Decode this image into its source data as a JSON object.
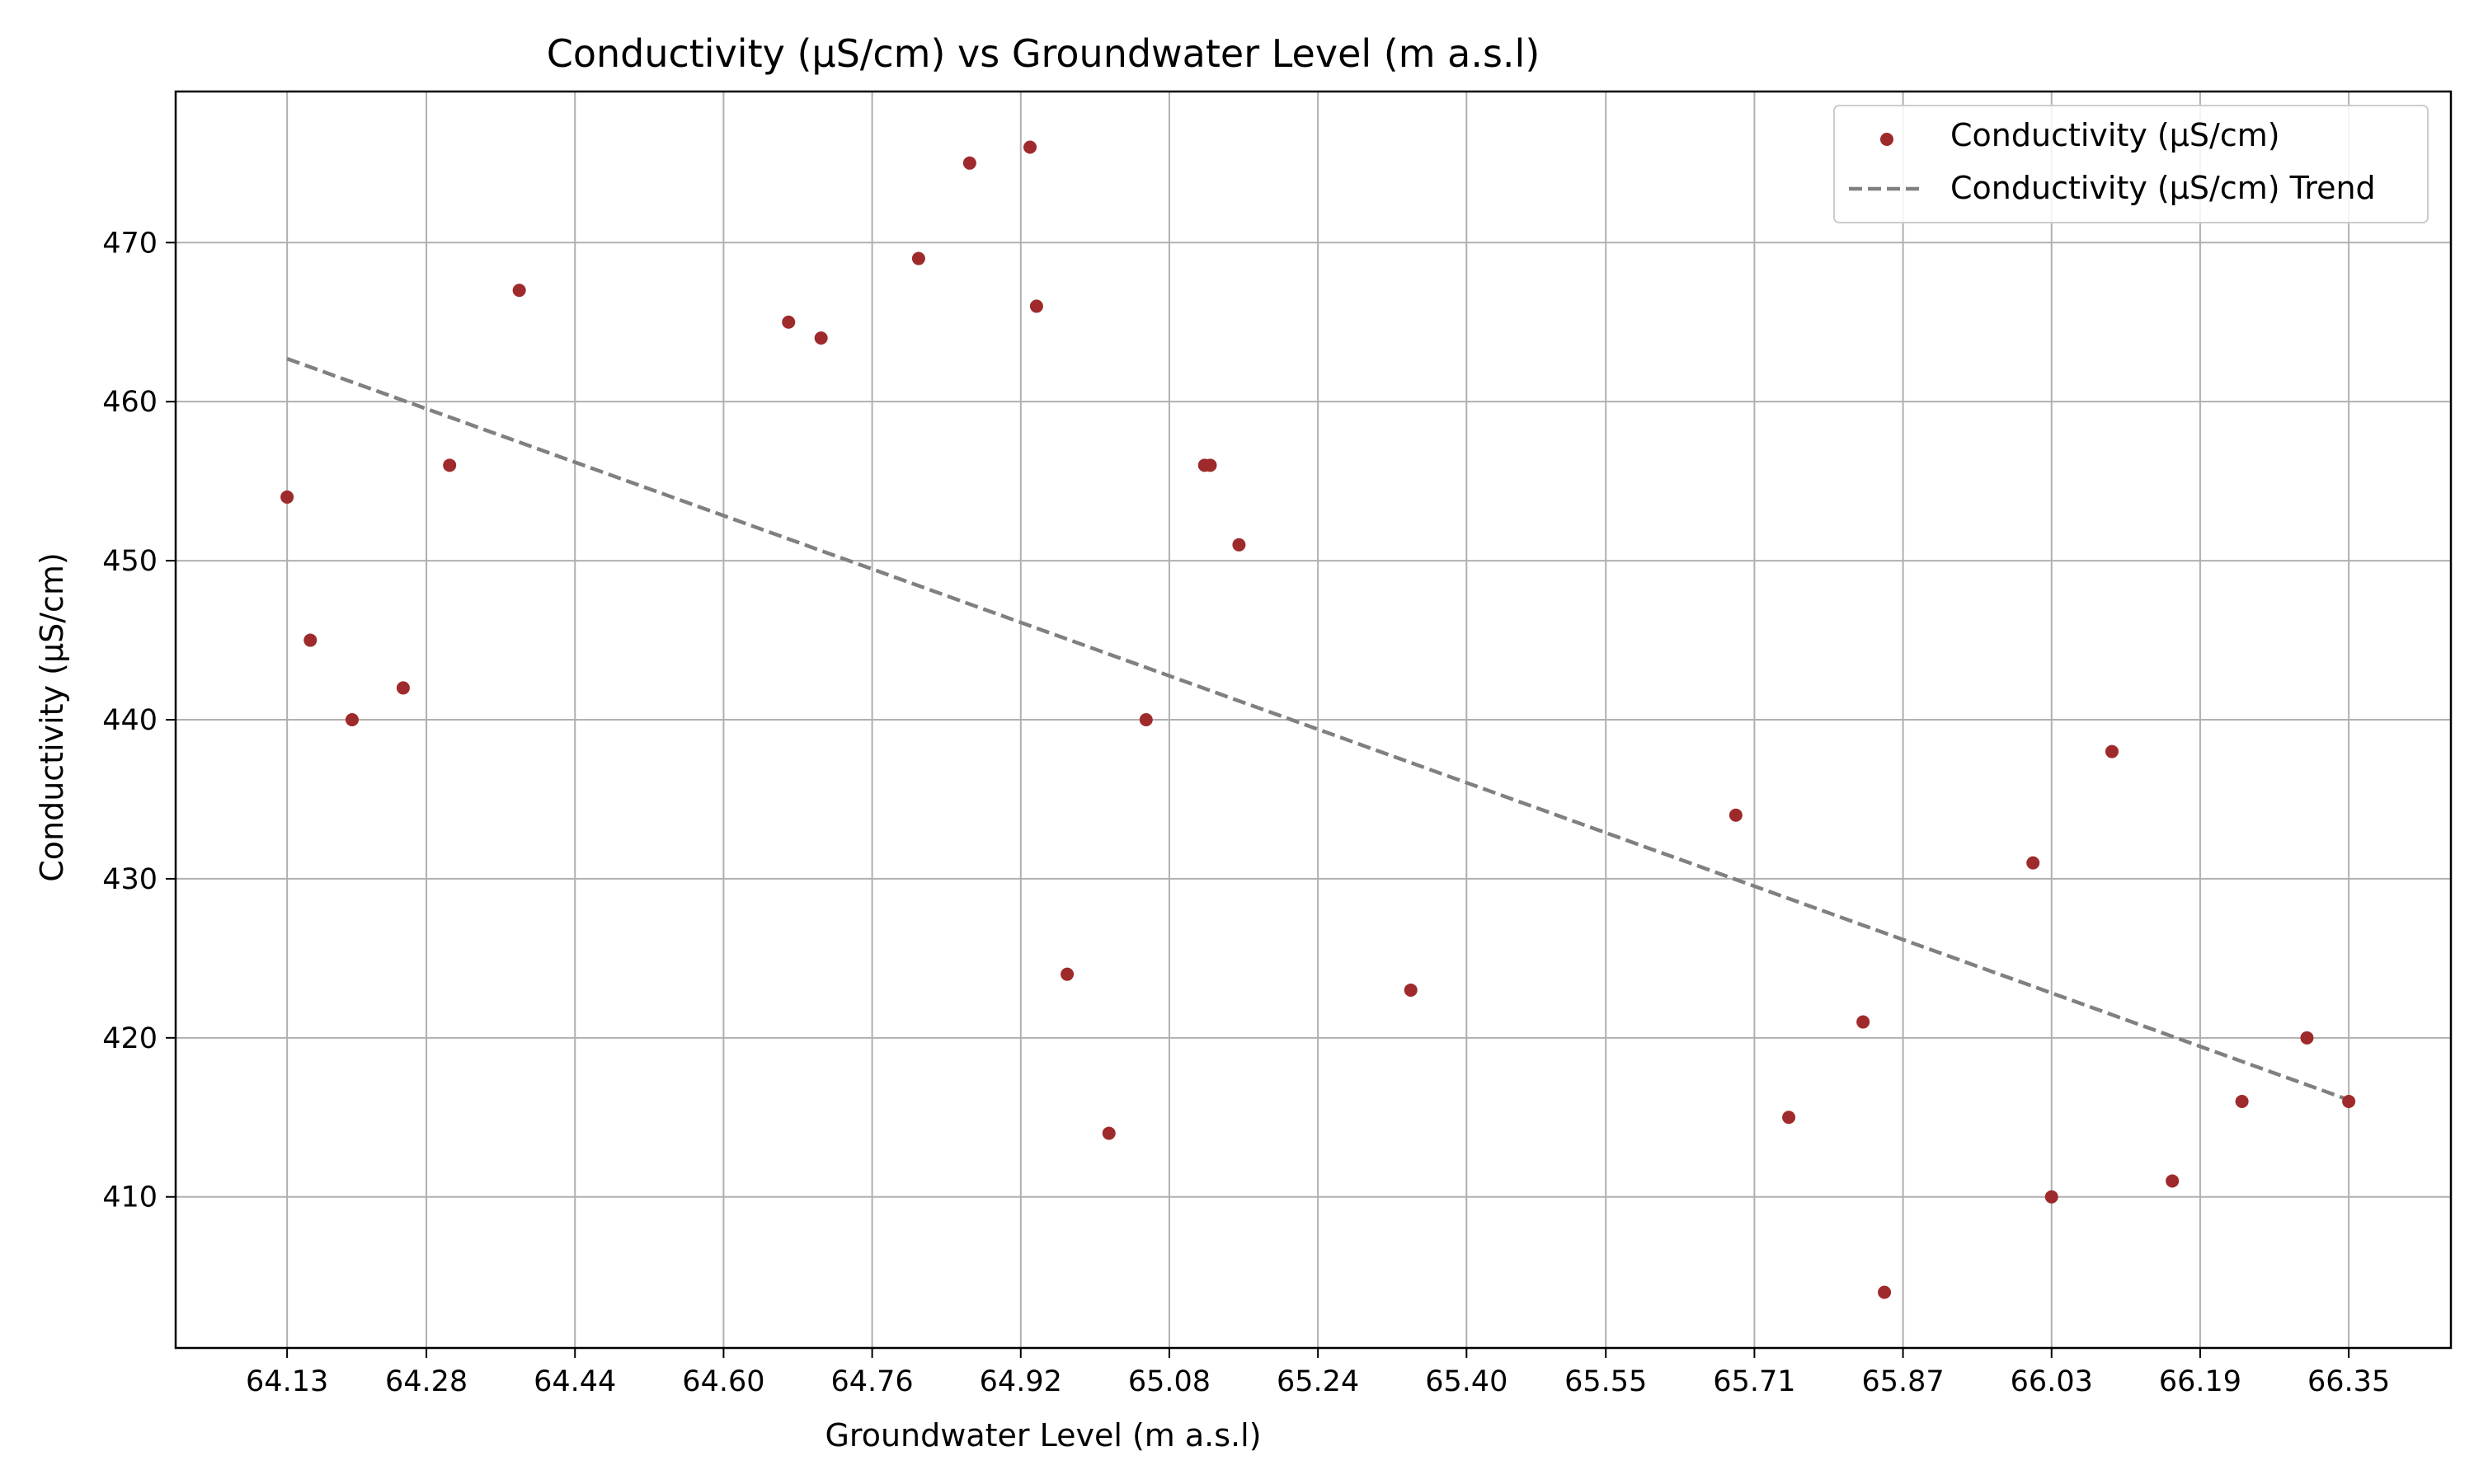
{
  "colors": {
    "point": "#9e2a2b",
    "trend": "#808080",
    "grid": "#b0b0b0",
    "axis": "#000000",
    "legend_border": "#cccccc"
  },
  "chart_data": {
    "type": "scatter",
    "title": "Conductivity (µS/cm) vs Groundwater Level (m a.s.l)",
    "xlabel": "Groundwater Level (m a.s.l)",
    "ylabel": "Conductivity (µS/cm)",
    "xlim": [
      64.01,
      66.46
    ],
    "ylim": [
      400.5,
      479.5
    ],
    "grid": true,
    "legend_position": "top-right",
    "x_ticks": [
      {
        "value": 64.13,
        "label": "64.13"
      },
      {
        "value": 64.28,
        "label": "64.28"
      },
      {
        "value": 64.44,
        "label": "64.44"
      },
      {
        "value": 64.6,
        "label": "64.60"
      },
      {
        "value": 64.76,
        "label": "64.76"
      },
      {
        "value": 64.92,
        "label": "64.92"
      },
      {
        "value": 65.08,
        "label": "65.08"
      },
      {
        "value": 65.24,
        "label": "65.24"
      },
      {
        "value": 65.4,
        "label": "65.40"
      },
      {
        "value": 65.55,
        "label": "65.55"
      },
      {
        "value": 65.71,
        "label": "65.71"
      },
      {
        "value": 65.87,
        "label": "65.87"
      },
      {
        "value": 66.03,
        "label": "66.03"
      },
      {
        "value": 66.19,
        "label": "66.19"
      },
      {
        "value": 66.35,
        "label": "66.35"
      }
    ],
    "y_ticks": [
      {
        "value": 410,
        "label": "410"
      },
      {
        "value": 420,
        "label": "420"
      },
      {
        "value": 430,
        "label": "430"
      },
      {
        "value": 440,
        "label": "440"
      },
      {
        "value": 450,
        "label": "450"
      },
      {
        "value": 460,
        "label": "460"
      },
      {
        "value": 470,
        "label": "470"
      }
    ],
    "series": [
      {
        "name": "Conductivity (µS/cm)",
        "kind": "scatter",
        "points": [
          {
            "x": 64.13,
            "y": 454
          },
          {
            "x": 64.155,
            "y": 445
          },
          {
            "x": 64.2,
            "y": 440
          },
          {
            "x": 64.255,
            "y": 442
          },
          {
            "x": 64.305,
            "y": 456
          },
          {
            "x": 64.38,
            "y": 467
          },
          {
            "x": 64.67,
            "y": 465
          },
          {
            "x": 64.705,
            "y": 464
          },
          {
            "x": 64.81,
            "y": 469
          },
          {
            "x": 64.865,
            "y": 475
          },
          {
            "x": 64.93,
            "y": 476
          },
          {
            "x": 64.937,
            "y": 466
          },
          {
            "x": 64.97,
            "y": 424
          },
          {
            "x": 65.015,
            "y": 414
          },
          {
            "x": 65.055,
            "y": 440
          },
          {
            "x": 65.118,
            "y": 456
          },
          {
            "x": 65.124,
            "y": 456
          },
          {
            "x": 65.155,
            "y": 451
          },
          {
            "x": 65.34,
            "y": 423
          },
          {
            "x": 65.69,
            "y": 434
          },
          {
            "x": 65.747,
            "y": 415
          },
          {
            "x": 65.827,
            "y": 421
          },
          {
            "x": 65.85,
            "y": 404
          },
          {
            "x": 66.01,
            "y": 431
          },
          {
            "x": 66.03,
            "y": 410
          },
          {
            "x": 66.095,
            "y": 438
          },
          {
            "x": 66.16,
            "y": 411
          },
          {
            "x": 66.235,
            "y": 416
          },
          {
            "x": 66.305,
            "y": 420
          },
          {
            "x": 66.35,
            "y": 416
          }
        ]
      },
      {
        "name": "Conductivity (µS/cm) Trend",
        "kind": "line",
        "style": "dashed",
        "points": [
          {
            "x": 64.13,
            "y": 462.7
          },
          {
            "x": 66.35,
            "y": 416.1
          }
        ]
      }
    ]
  }
}
